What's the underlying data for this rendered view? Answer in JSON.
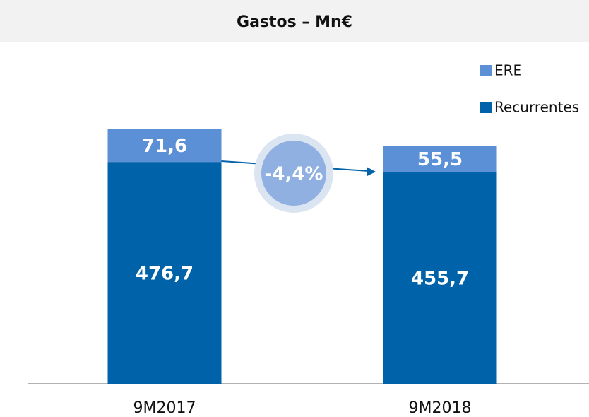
{
  "chart_data": {
    "type": "stacked_bar",
    "title": "Gastos – Mn€",
    "categories": [
      "9M2017",
      "9M2018"
    ],
    "series": [
      {
        "name": "Recurrentes",
        "color": "#0062a8",
        "values": [
          476.7,
          455.7
        ],
        "value_labels": [
          "476,7",
          "455,7"
        ]
      },
      {
        "name": "ERE",
        "color": "#5b8fd6",
        "values": [
          71.6,
          55.5
        ],
        "value_labels": [
          "71,6",
          "55,5"
        ]
      }
    ],
    "annotation": "-4,4%"
  }
}
